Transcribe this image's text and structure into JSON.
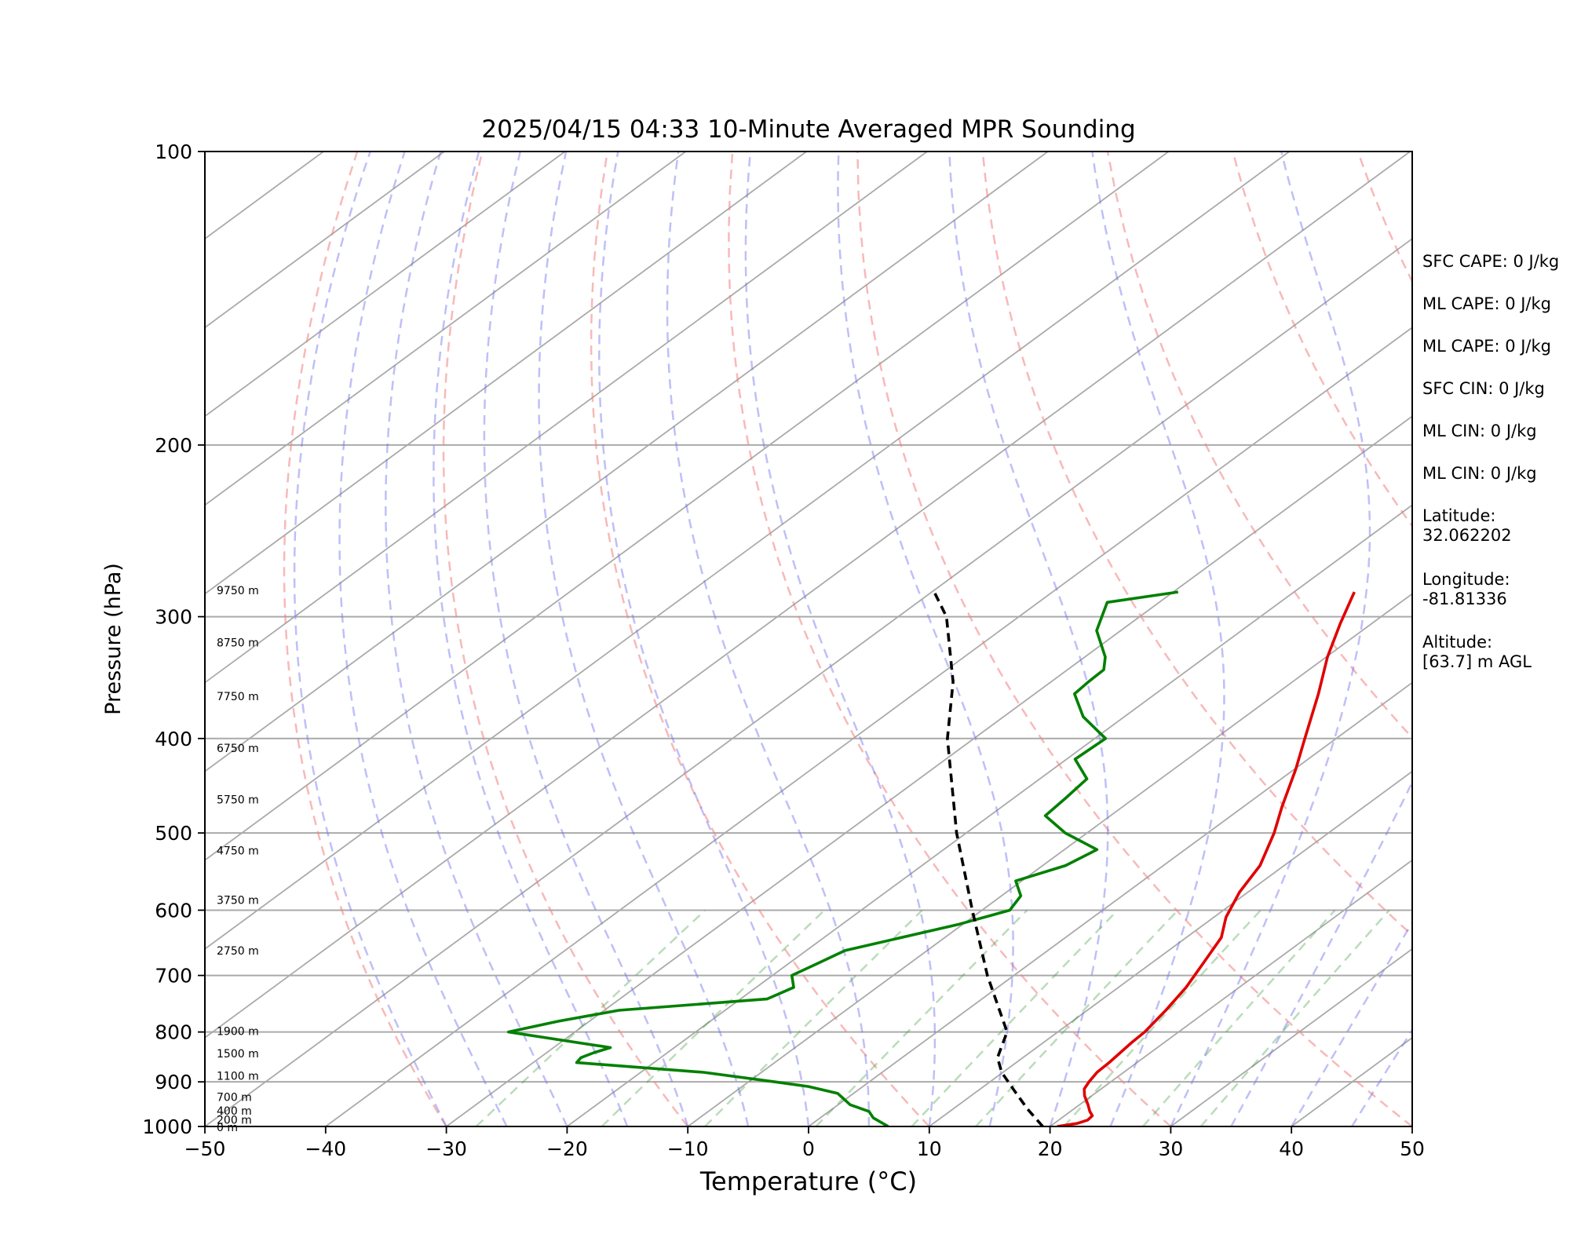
{
  "chart_data": {
    "type": "line",
    "subtype": "skew-t",
    "title": "2025/04/15 04:33 10-Minute Averaged MPR Sounding",
    "xlabel": "Temperature (°C)",
    "ylabel": "Pressure (hPa)",
    "xlim": [
      -50,
      50
    ],
    "ylim": [
      1000,
      100
    ],
    "y_scale": "log",
    "grid": true,
    "x_ticks": [
      "−50",
      "−40",
      "−30",
      "−20",
      "−10",
      "0",
      "10",
      "20",
      "30",
      "40",
      "50"
    ],
    "y_ticks": [
      "100",
      "200",
      "300",
      "400",
      "500",
      "600",
      "700",
      "800",
      "900",
      "1000"
    ],
    "height_labels": [
      {
        "p": 282,
        "label": "9750 m"
      },
      {
        "p": 319,
        "label": "8750 m"
      },
      {
        "p": 362,
        "label": "7750 m"
      },
      {
        "p": 409,
        "label": "6750 m"
      },
      {
        "p": 462,
        "label": "5750 m"
      },
      {
        "p": 521,
        "label": "4750 m"
      },
      {
        "p": 586,
        "label": "3750 m"
      },
      {
        "p": 660,
        "label": "2750 m"
      },
      {
        "p": 798,
        "label": "1900 m"
      },
      {
        "p": 842,
        "label": "1500 m"
      },
      {
        "p": 887,
        "label": "1100 m"
      },
      {
        "p": 933,
        "label": "700 m"
      },
      {
        "p": 964,
        "label": "400 m"
      },
      {
        "p": 984,
        "label": "200 m"
      },
      {
        "p": 1002,
        "label": "0 m"
      }
    ],
    "series": [
      {
        "color": "#e00000",
        "p": [
          1000,
          993,
          985,
          975,
          965,
          950,
          930,
          915,
          900,
          880,
          860,
          840,
          820,
          800,
          760,
          720,
          680,
          640,
          610,
          575,
          540,
          500,
          470,
          430,
          400,
          360,
          330,
          305,
          283
        ],
        "t": [
          20.6,
          21.9,
          22.4,
          22.3,
          21.6,
          20.7,
          19.4,
          18.6,
          18.2,
          17.8,
          17.7,
          17.5,
          17.3,
          17.2,
          16.5,
          15.6,
          14.3,
          12.9,
          11.0,
          9.3,
          8.0,
          5.5,
          3.2,
          0.1,
          -2.6,
          -6.5,
          -9.9,
          -12.6,
          -15.0
        ]
      },
      {
        "color": "#008000",
        "p": [
          1000,
          990,
          980,
          965,
          950,
          925,
          910,
          900,
          880,
          860,
          850,
          840,
          830,
          800,
          780,
          760,
          740,
          720,
          700,
          680,
          660,
          620,
          600,
          580,
          560,
          540,
          520,
          500,
          480,
          460,
          440,
          420,
          400,
          380,
          360,
          350,
          340,
          330,
          310,
          290,
          283
        ],
        "t": [
          6.6,
          5.5,
          4.4,
          3.3,
          1.0,
          -1.3,
          -4.5,
          -7.8,
          -14.8,
          -26.4,
          -26.6,
          -26.1,
          -25.3,
          -35.5,
          -32.6,
          -28.8,
          -17.8,
          -16.9,
          -18.4,
          -17.6,
          -16.8,
          -10.3,
          -7.7,
          -8.4,
          -10.5,
          -8.1,
          -7.3,
          -11.8,
          -15.4,
          -15.7,
          -16.1,
          -19.3,
          -19.1,
          -23.4,
          -26.7,
          -26.9,
          -27.0,
          -28.3,
          -32.0,
          -34.3,
          -29.6
        ]
      },
      {
        "color": "#000000",
        "dashed": true,
        "p": [
          1000,
          960,
          920,
          880,
          850,
          800,
          700,
          600,
          500,
          400,
          350,
          300,
          283
        ],
        "t": [
          19.4,
          16.2,
          13.1,
          9.9,
          7.9,
          5.8,
          -2.2,
          -10.8,
          -20.8,
          -32.2,
          -38.1,
          -46.0,
          -49.8
        ]
      }
    ]
  },
  "indices": [
    "SFC CAPE: 0 J/kg",
    "ML CAPE: 0 J/kg",
    "ML CAPE: 0 J/kg",
    "SFC CIN: 0 J/kg",
    "ML CIN: 0 J/kg",
    "ML CIN: 0 J/kg"
  ],
  "location": {
    "latitude_label": "Latitude:",
    "latitude": "32.062202",
    "longitude_label": "Longitude:",
    "longitude": "-81.81336",
    "altitude_label": "Altitude:",
    "altitude": "[63.7] m AGL"
  }
}
